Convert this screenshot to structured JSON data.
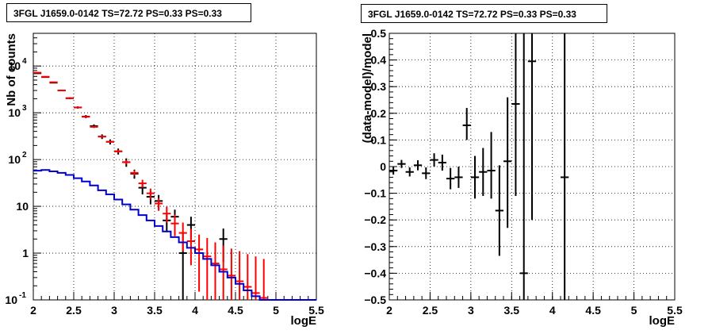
{
  "chart_data": [
    {
      "type": "scatter",
      "title": "3FGL J1659.0-0142 TS=72.72 PS=0.33 PS=0.33",
      "xlabel": "logE",
      "ylabel": "Nb of counts",
      "xlim": [
        2,
        5.5
      ],
      "ylim": [
        0.1,
        50000
      ],
      "yscale": "log",
      "grid": true,
      "xticks": [
        "2",
        "2.5",
        "3",
        "3.5",
        "4",
        "4.5",
        "5",
        "5.5"
      ],
      "yticks": [
        {
          "v": 0.1,
          "label": "10",
          "exp": "-1"
        },
        {
          "v": 1,
          "label": "1",
          "exp": ""
        },
        {
          "v": 10,
          "label": "10",
          "exp": ""
        },
        {
          "v": 100,
          "label": "10",
          "exp": "2"
        },
        {
          "v": 1000,
          "label": "10",
          "exp": "3"
        },
        {
          "v": 10000,
          "label": "10",
          "exp": "4"
        }
      ],
      "series": [
        {
          "kind": "points",
          "color": "#000000",
          "points": [
            {
              "x": 2.05,
              "y": 7000,
              "lo": 6840,
              "hi": 7160
            },
            {
              "x": 2.15,
              "y": 5800,
              "lo": 5650,
              "hi": 5950
            },
            {
              "x": 2.25,
              "y": 4400,
              "lo": 4270,
              "hi": 4530
            },
            {
              "x": 2.35,
              "y": 3000,
              "lo": 2890,
              "hi": 3110
            },
            {
              "x": 2.45,
              "y": 2050,
              "lo": 1960,
              "hi": 2140
            },
            {
              "x": 2.55,
              "y": 1300,
              "lo": 1230,
              "hi": 1370
            },
            {
              "x": 2.65,
              "y": 830,
              "lo": 770,
              "hi": 890
            },
            {
              "x": 2.75,
              "y": 520,
              "lo": 475,
              "hi": 565
            },
            {
              "x": 2.85,
              "y": 310,
              "lo": 275,
              "hi": 345
            },
            {
              "x": 2.95,
              "y": 240,
              "lo": 210,
              "hi": 270
            },
            {
              "x": 3.05,
              "y": 150,
              "lo": 128,
              "hi": 172
            },
            {
              "x": 3.15,
              "y": 88,
              "lo": 70,
              "hi": 106
            },
            {
              "x": 3.25,
              "y": 50,
              "lo": 39,
              "hi": 61
            },
            {
              "x": 3.35,
              "y": 25,
              "lo": 18,
              "hi": 32
            },
            {
              "x": 3.45,
              "y": 16,
              "lo": 11,
              "hi": 21
            },
            {
              "x": 3.55,
              "y": 13,
              "lo": 8.5,
              "hi": 17.5
            },
            {
              "x": 3.65,
              "y": 5,
              "lo": 2.8,
              "hi": 7.2
            },
            {
              "x": 3.75,
              "y": 6,
              "lo": 3.5,
              "hi": 8.5
            },
            {
              "x": 3.85,
              "y": 1,
              "lo": 0.1,
              "hi": 2.7
            },
            {
              "x": 3.95,
              "y": 4,
              "lo": 2.0,
              "hi": 6.0
            },
            {
              "x": 4.35,
              "y": 2,
              "lo": 0.65,
              "hi": 3.35
            }
          ]
        },
        {
          "kind": "points",
          "color": "#ff0000",
          "points": [
            {
              "x": 2.05,
              "y": 7200,
              "lo": 7200,
              "hi": 7200
            },
            {
              "x": 2.15,
              "y": 5900,
              "lo": 5900,
              "hi": 5900
            },
            {
              "x": 2.25,
              "y": 4500,
              "lo": 4500,
              "hi": 4500
            },
            {
              "x": 2.35,
              "y": 3000,
              "lo": 3000,
              "hi": 3000
            },
            {
              "x": 2.45,
              "y": 2050,
              "lo": 2050,
              "hi": 2050
            },
            {
              "x": 2.55,
              "y": 1300,
              "lo": 1300,
              "hi": 1300
            },
            {
              "x": 2.65,
              "y": 820,
              "lo": 820,
              "hi": 820
            },
            {
              "x": 2.75,
              "y": 500,
              "lo": 500,
              "hi": 500
            },
            {
              "x": 2.85,
              "y": 310,
              "lo": 300,
              "hi": 320
            },
            {
              "x": 2.95,
              "y": 240,
              "lo": 228,
              "hi": 252
            },
            {
              "x": 3.05,
              "y": 150,
              "lo": 140,
              "hi": 160
            },
            {
              "x": 3.15,
              "y": 88,
              "lo": 80,
              "hi": 96
            },
            {
              "x": 3.25,
              "y": 52,
              "lo": 46,
              "hi": 58
            },
            {
              "x": 3.35,
              "y": 31,
              "lo": 25,
              "hi": 37
            },
            {
              "x": 3.45,
              "y": 19,
              "lo": 14,
              "hi": 24
            },
            {
              "x": 3.55,
              "y": 11.5,
              "lo": 8,
              "hi": 15
            },
            {
              "x": 3.65,
              "y": 7,
              "lo": 4.5,
              "hi": 9.8
            },
            {
              "x": 3.75,
              "y": 4.3,
              "lo": 2.3,
              "hi": 6.6
            },
            {
              "x": 3.85,
              "y": 2.7,
              "lo": 1.1,
              "hi": 4.5
            },
            {
              "x": 3.95,
              "y": 1.8,
              "lo": 0.55,
              "hi": 3.3
            },
            {
              "x": 4.05,
              "y": 1.2,
              "lo": 0.15,
              "hi": 2.5
            },
            {
              "x": 4.15,
              "y": 0.85,
              "lo": 0.1,
              "hi": 2.1
            },
            {
              "x": 4.25,
              "y": 0.6,
              "lo": 0.1,
              "hi": 1.7
            },
            {
              "x": 4.35,
              "y": 0.45,
              "lo": 0.1,
              "hi": 1.45
            },
            {
              "x": 4.45,
              "y": 0.33,
              "lo": 0.1,
              "hi": 1.25
            },
            {
              "x": 4.55,
              "y": 0.25,
              "lo": 0.1,
              "hi": 1.1
            },
            {
              "x": 4.65,
              "y": 0.19,
              "lo": 0.1,
              "hi": 0.95
            },
            {
              "x": 4.75,
              "y": 0.14,
              "lo": 0.1,
              "hi": 0.85
            },
            {
              "x": 4.85,
              "y": 0.11,
              "lo": 0.1,
              "hi": 0.75
            }
          ]
        },
        {
          "kind": "step",
          "color": "#0000cc",
          "edges": [
            2.0,
            2.1,
            2.2,
            2.3,
            2.4,
            2.5,
            2.6,
            2.7,
            2.8,
            2.9,
            3.0,
            3.1,
            3.2,
            3.3,
            3.4,
            3.5,
            3.6,
            3.7,
            3.8,
            3.9,
            4.0,
            4.1,
            4.2,
            4.3,
            4.4,
            4.5,
            4.6,
            4.7,
            4.8,
            4.9,
            5.0,
            5.5
          ],
          "values": [
            58,
            60,
            56,
            52,
            47,
            40,
            34,
            28,
            22,
            18,
            14,
            11,
            8.5,
            6.5,
            5,
            3.8,
            2.9,
            2.2,
            1.7,
            1.3,
            1.0,
            0.75,
            0.55,
            0.4,
            0.3,
            0.22,
            0.16,
            0.12,
            0.1,
            0.1,
            0.1
          ]
        }
      ]
    },
    {
      "type": "scatter",
      "title": "3FGL J1659.0-0142 TS=72.72 PS=0.33 PS=0.33",
      "xlabel": "logE",
      "ylabel": "(data-model)/model",
      "xlim": [
        2,
        5.5
      ],
      "ylim": [
        -0.5,
        0.5
      ],
      "grid": true,
      "xticks": [
        "2",
        "2.5",
        "3",
        "3.5",
        "4",
        "4.5",
        "5",
        "5.5"
      ],
      "yticks": [
        "−0.5",
        "−0.4",
        "−0.3",
        "−0.2",
        "−0.1",
        "0",
        "0.1",
        "0.2",
        "0.3",
        "0.4",
        "0.5"
      ],
      "series": [
        {
          "kind": "points",
          "color": "#000000",
          "points": [
            {
              "x": 2.05,
              "y": -0.015,
              "lo": -0.03,
              "hi": 0.0
            },
            {
              "x": 2.15,
              "y": 0.01,
              "lo": -0.005,
              "hi": 0.025
            },
            {
              "x": 2.25,
              "y": -0.02,
              "lo": -0.037,
              "hi": -0.003
            },
            {
              "x": 2.35,
              "y": 0.005,
              "lo": -0.014,
              "hi": 0.024
            },
            {
              "x": 2.45,
              "y": -0.025,
              "lo": -0.047,
              "hi": -0.003
            },
            {
              "x": 2.55,
              "y": 0.025,
              "lo": 0.0,
              "hi": 0.05
            },
            {
              "x": 2.65,
              "y": 0.015,
              "lo": -0.015,
              "hi": 0.045
            },
            {
              "x": 2.75,
              "y": -0.045,
              "lo": -0.085,
              "hi": -0.005
            },
            {
              "x": 2.85,
              "y": -0.04,
              "lo": -0.08,
              "hi": 0.0
            },
            {
              "x": 2.95,
              "y": 0.155,
              "lo": 0.1,
              "hi": 0.22
            },
            {
              "x": 3.05,
              "y": -0.04,
              "lo": -0.12,
              "hi": 0.04
            },
            {
              "x": 3.15,
              "y": -0.02,
              "lo": -0.11,
              "hi": 0.07
            },
            {
              "x": 3.25,
              "y": -0.015,
              "lo": -0.12,
              "hi": 0.13
            },
            {
              "x": 3.35,
              "y": -0.165,
              "lo": -0.335,
              "hi": 0.005
            },
            {
              "x": 3.45,
              "y": 0.02,
              "lo": -0.23,
              "hi": 0.26
            },
            {
              "x": 3.55,
              "y": 0.235,
              "lo": -0.11,
              "hi": 0.5
            },
            {
              "x": 3.65,
              "y": -0.4,
              "lo": -0.5,
              "hi": 0.5
            },
            {
              "x": 3.75,
              "y": 0.395,
              "lo": -0.2,
              "hi": 0.5
            },
            {
              "x": 4.15,
              "y": -0.04,
              "lo": -0.5,
              "hi": 0.5
            }
          ]
        }
      ]
    }
  ]
}
